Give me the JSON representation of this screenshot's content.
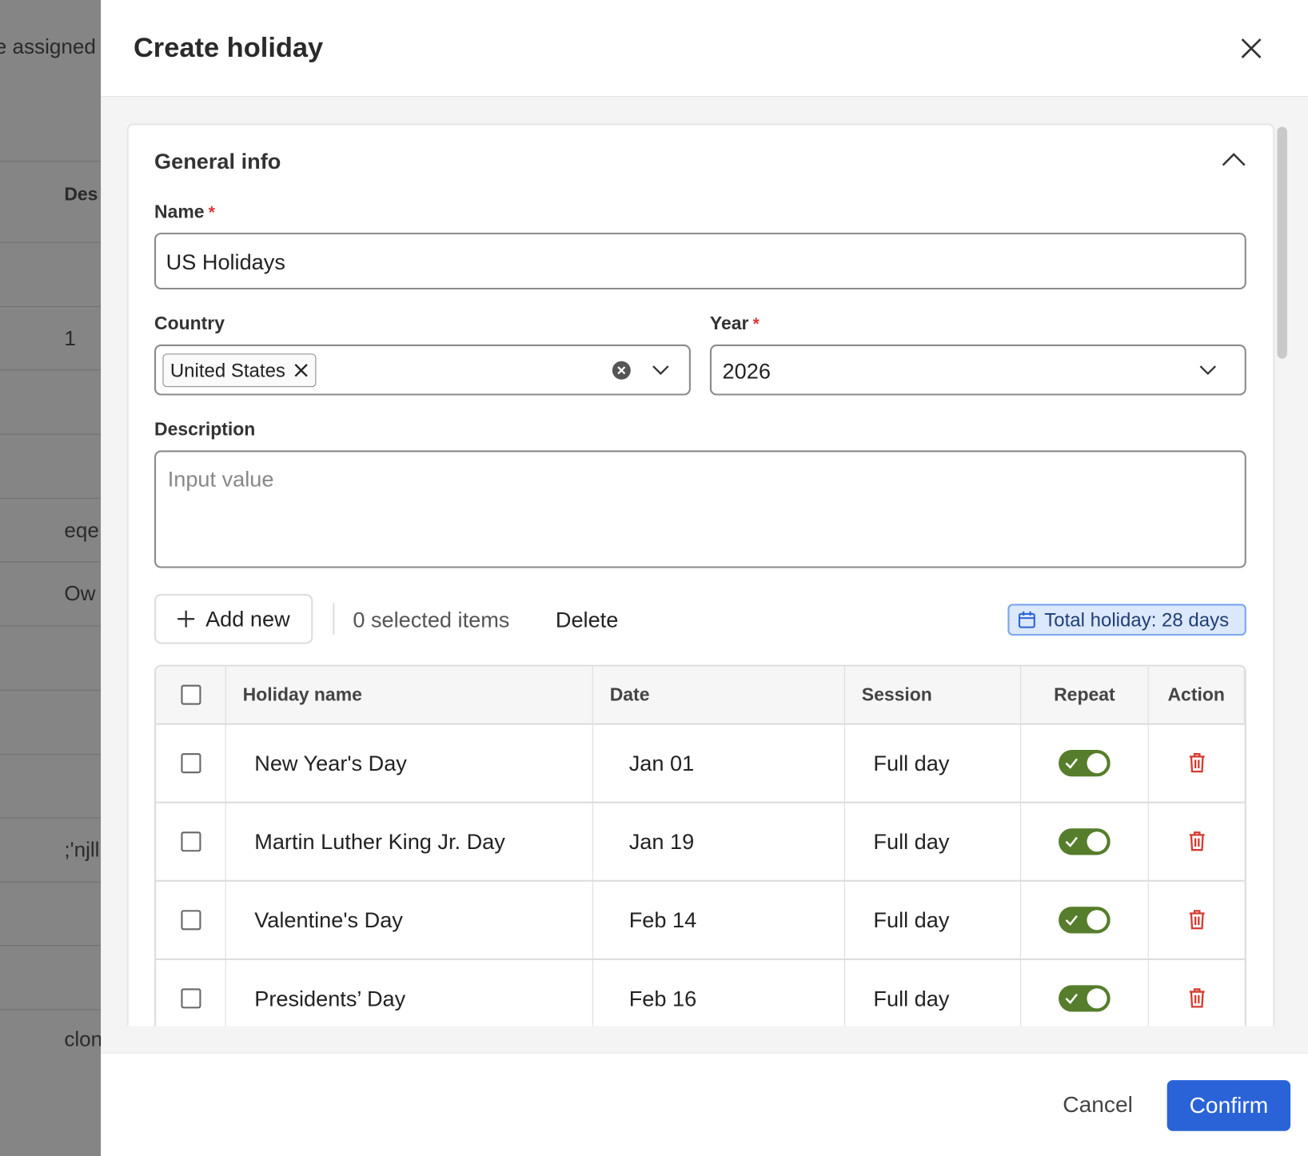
{
  "background": {
    "texts": [
      "e assigned",
      "Des",
      "1",
      "eqe",
      "Ow",
      ";'njll",
      "clon"
    ]
  },
  "header": {
    "title": "Create holiday"
  },
  "section": {
    "title": "General info"
  },
  "form": {
    "required_mark": "*",
    "name": {
      "label": "Name",
      "value": "US Holidays"
    },
    "country": {
      "label": "Country",
      "tag": "United States"
    },
    "year": {
      "label": "Year",
      "value": "2026"
    },
    "description": {
      "label": "Description",
      "placeholder": "Input value"
    }
  },
  "toolbar": {
    "add": "Add new",
    "selected": "0 selected items",
    "delete": "Delete",
    "total": "Total holiday: 28 days"
  },
  "table": {
    "columns": [
      "Holiday name",
      "Date",
      "Session",
      "Repeat",
      "Action"
    ],
    "rows": [
      {
        "name": "New Year's Day",
        "date": "Jan 01",
        "session": "Full day",
        "repeat": true
      },
      {
        "name": "Martin Luther King Jr. Day",
        "date": "Jan 19",
        "session": "Full day",
        "repeat": true
      },
      {
        "name": "Valentine's Day",
        "date": "Feb 14",
        "session": "Full day",
        "repeat": true
      },
      {
        "name": "Presidents’ Day",
        "date": "Feb 16",
        "session": "Full day",
        "repeat": true
      }
    ]
  },
  "footer": {
    "cancel": "Cancel",
    "confirm": "Confirm"
  }
}
